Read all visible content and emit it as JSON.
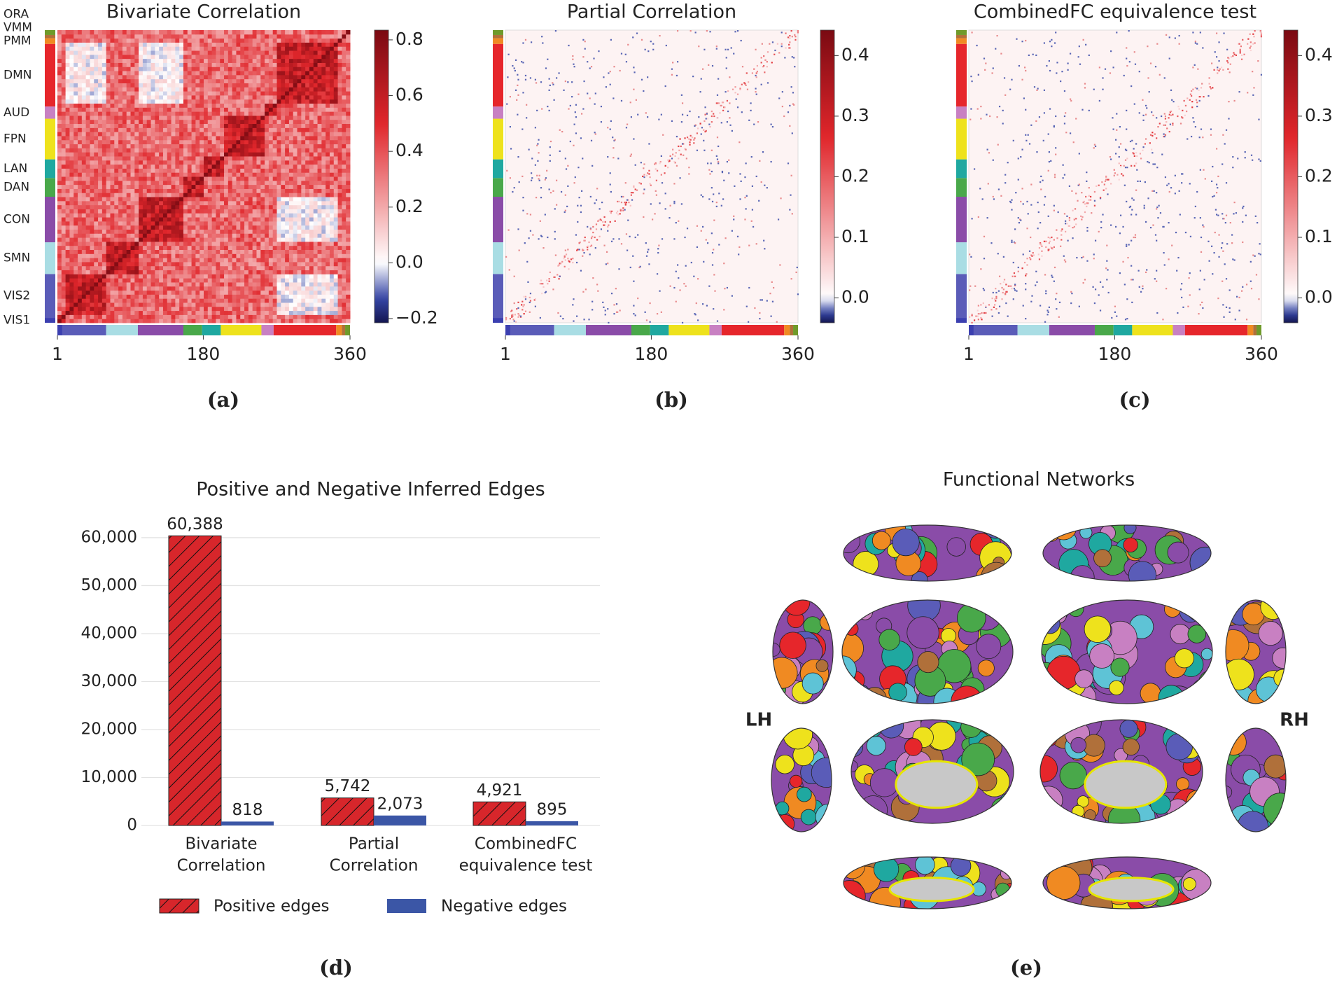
{
  "chart_data": [
    {
      "type": "heatmap",
      "title": "Bivariate Correlation",
      "panel_label": "(a)",
      "networks": [
        {
          "name": "VIS1",
          "color": "#3b3fb0",
          "size": 6
        },
        {
          "name": "VIS2",
          "color": "#5a5cb8",
          "size": 54
        },
        {
          "name": "SMN",
          "color": "#a9dde4",
          "size": 39
        },
        {
          "name": "CON",
          "color": "#8a4ca8",
          "size": 56
        },
        {
          "name": "DAN",
          "color": "#49a84a",
          "size": 23
        },
        {
          "name": "LAN",
          "color": "#1fa8a0",
          "size": 23
        },
        {
          "name": "FPN",
          "color": "#eee21c",
          "size": 50
        },
        {
          "name": "AUD",
          "color": "#c880c2",
          "size": 15
        },
        {
          "name": "DMN",
          "color": "#e6262b",
          "size": 77
        },
        {
          "name": "PMM",
          "color": "#f08a22",
          "size": 7
        },
        {
          "name": "VMM",
          "color": "#b0703a",
          "size": 4
        },
        {
          "name": "ORA",
          "color": "#6f9a2a",
          "size": 6
        }
      ],
      "xlim": [
        1,
        360
      ],
      "xticks": [
        1,
        180,
        360
      ],
      "clim": [
        -0.215,
        0.835
      ],
      "cticks": [
        {
          "value": -0.2,
          "label": "−0.2"
        },
        {
          "value": 0,
          "label": "0.0"
        },
        0.2,
        0.4,
        0.6,
        0.8
      ]
    },
    {
      "type": "heatmap",
      "title": "Partial Correlation",
      "panel_label": "(b)",
      "xlim": [
        1,
        360
      ],
      "xticks": [
        1,
        180,
        360
      ],
      "clim": [
        -0.041,
        0.442
      ],
      "cticks": [
        {
          "value": 0,
          "label": "0.0"
        },
        0.1,
        0.2,
        0.3,
        0.4
      ]
    },
    {
      "type": "heatmap",
      "title": "CombinedFC equivalence test",
      "panel_label": "(c)",
      "xlim": [
        1,
        360
      ],
      "xticks": [
        1,
        180,
        360
      ],
      "clim": [
        -0.041,
        0.442
      ],
      "cticks": [
        {
          "value": 0,
          "label": "0.0"
        },
        0.1,
        0.2,
        0.3,
        0.4
      ]
    },
    {
      "type": "bar",
      "title": "Positive and Negative Inferred Edges",
      "panel_label": "(d)",
      "categories": [
        [
          "Bivariate",
          "Correlation"
        ],
        [
          "Partial",
          "Correlation"
        ],
        [
          "CombinedFC",
          "equivalence test"
        ]
      ],
      "series": [
        {
          "name": "Positive edges",
          "color": "#d7262b",
          "hatch": "//",
          "values": [
            60388,
            5742,
            4921
          ],
          "value_labels": [
            "60,388",
            "5,742",
            "4,921"
          ]
        },
        {
          "name": "Negative edges",
          "color": "#3b56a6",
          "values": [
            818,
            2073,
            895
          ],
          "value_labels": [
            "818",
            "2,073",
            "895"
          ]
        }
      ],
      "ylim": [
        0,
        63000
      ],
      "yticks": [
        0,
        {
          "value": 10000,
          "label": "10,000"
        },
        {
          "value": 20000,
          "label": "20,000"
        },
        {
          "value": 30000,
          "label": "30,000"
        },
        {
          "value": 40000,
          "label": "40,000"
        },
        {
          "value": 50000,
          "label": "50,000"
        },
        {
          "value": 60000,
          "label": "60,000"
        }
      ],
      "grid": true,
      "legend": "lower center"
    }
  ],
  "brain_panel": {
    "title": "Functional Networks",
    "left_hemisphere": "LH",
    "right_hemisphere": "RH",
    "panel_label": "(e)"
  }
}
